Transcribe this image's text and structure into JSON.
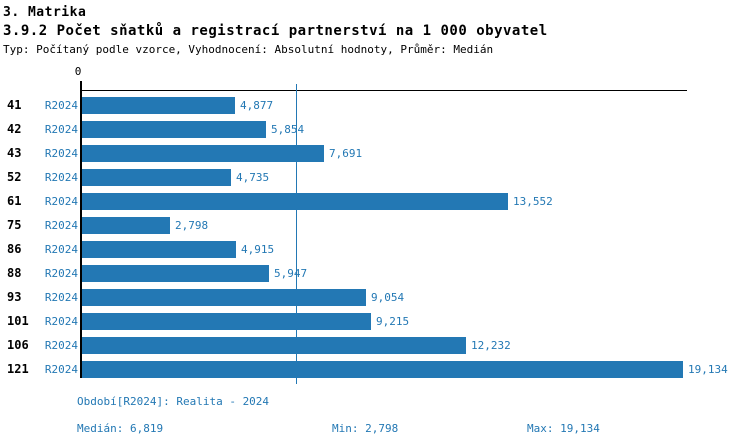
{
  "header": {
    "section_title": "3. Matrika",
    "chart_title": "3.9.2 Počet sňatků a registrací partnerství na 1 000 obyvatel",
    "subtitle": "Typ: Počítaný podle vzorce, Vyhodnocení: Absolutní hodnoty, Průměr: Medián"
  },
  "colors": {
    "accent_blue": "#2378b4",
    "axis_black": "#000000",
    "background": "#ffffff"
  },
  "chart_data": {
    "type": "bar",
    "orientation": "horizontal",
    "title": "3.9.2 Počet sňatků a registrací partnerství na 1 000 obyvatel",
    "categories": [
      "41",
      "42",
      "43",
      "52",
      "61",
      "75",
      "86",
      "88",
      "93",
      "101",
      "106",
      "121"
    ],
    "series_label": "R2024",
    "values": [
      4.877,
      5.854,
      7.691,
      4.735,
      13.552,
      2.798,
      4.915,
      5.947,
      9.054,
      9.215,
      12.232,
      19.134
    ],
    "value_labels": [
      "4,877",
      "5,854",
      "7,691",
      "4,735",
      "13,552",
      "2,798",
      "4,915",
      "5,947",
      "9,054",
      "9,215",
      "12,232",
      "19,134"
    ],
    "axis_origin_label": "0",
    "xlim": [
      0,
      19.45
    ],
    "median": 6.819,
    "min": 2.798,
    "max": 19.134,
    "grid": false,
    "legend_position": "none",
    "bar_color": "#2378b4"
  },
  "footer": {
    "period": "Období[R2024]: Realita - 2024",
    "median": "Medián: 6,819",
    "min": "Min: 2,798",
    "max": "Max: 19,134"
  }
}
